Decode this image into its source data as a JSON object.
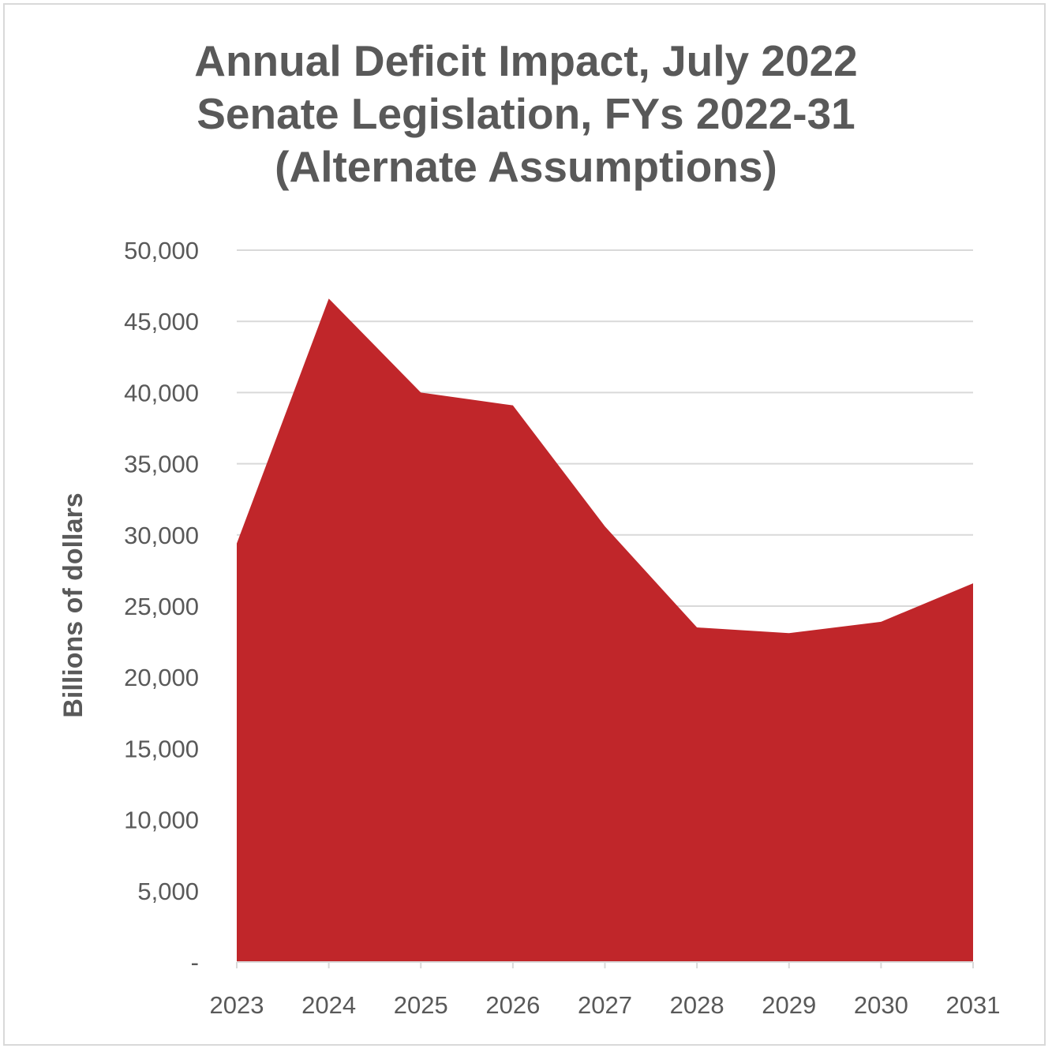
{
  "chart_data": {
    "type": "area",
    "title_lines": [
      "Annual Deficit Impact, July 2022",
      "Senate Legislation, FYs 2022-31",
      "(Alternate Assumptions)"
    ],
    "xlabel": "",
    "ylabel": "Billions of dollars",
    "categories": [
      "2023",
      "2024",
      "2025",
      "2026",
      "2027",
      "2028",
      "2029",
      "2030",
      "2031"
    ],
    "values": [
      29400,
      46600,
      40000,
      39100,
      30600,
      23500,
      23100,
      23900,
      26600
    ],
    "ylim": [
      0,
      50000
    ],
    "yticks": [
      0,
      5000,
      10000,
      15000,
      20000,
      25000,
      30000,
      35000,
      40000,
      45000,
      50000
    ],
    "ytick_labels": [
      "-",
      "5,000",
      "10,000",
      "15,000",
      "20,000",
      "25,000",
      "30,000",
      "35,000",
      "40,000",
      "45,000",
      "50,000"
    ],
    "grid": true,
    "legend": "none",
    "colors": {
      "fill": "#c0262a",
      "grid": "#d9d9d9",
      "text": "#595959"
    }
  }
}
